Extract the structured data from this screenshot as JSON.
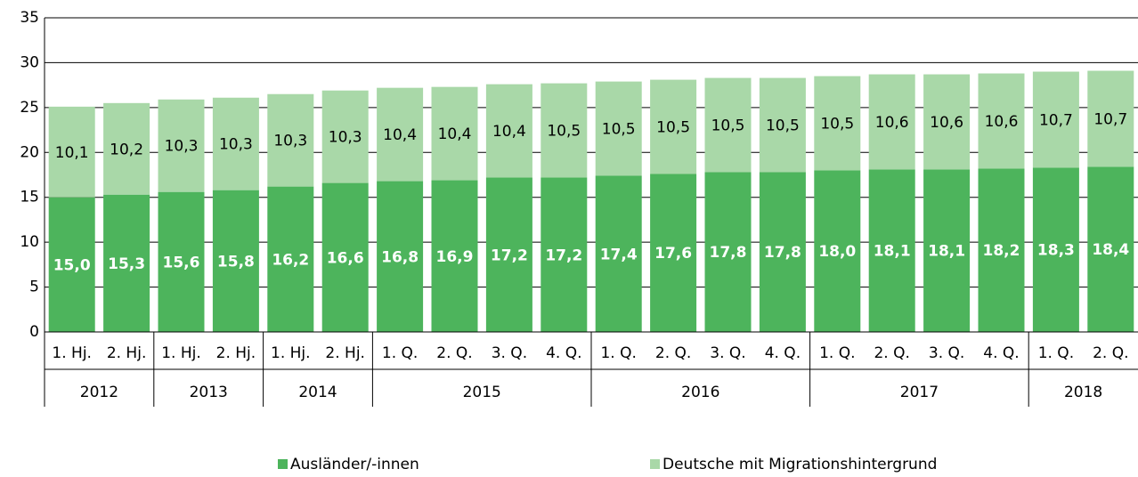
{
  "chart_data": {
    "type": "stacked_bar",
    "categories": [
      "1. Hj.",
      "2. Hj.",
      "1. Hj.",
      "2. Hj.",
      "1. Hj.",
      "2. Hj.",
      "1. Q.",
      "2. Q.",
      "3. Q.",
      "4. Q.",
      "1. Q.",
      "2. Q.",
      "3. Q.",
      "4. Q.",
      "1. Q.",
      "2. Q.",
      "3. Q.",
      "4. Q.",
      "1. Q.",
      "2. Q."
    ],
    "groups": [
      {
        "name": "2012",
        "count": 2
      },
      {
        "name": "2013",
        "count": 2
      },
      {
        "name": "2014",
        "count": 2
      },
      {
        "name": "2015",
        "count": 4
      },
      {
        "name": "2016",
        "count": 4
      },
      {
        "name": "2017",
        "count": 4
      },
      {
        "name": "2018",
        "count": 2
      }
    ],
    "series": [
      {
        "name": "Ausländer/-innen",
        "color": "#4db45c",
        "values": [
          15.0,
          15.3,
          15.6,
          15.8,
          16.2,
          16.6,
          16.8,
          16.9,
          17.2,
          17.2,
          17.4,
          17.6,
          17.8,
          17.8,
          18.0,
          18.1,
          18.1,
          18.2,
          18.3,
          18.4
        ],
        "value_labels": [
          "15,0",
          "15,3",
          "15,6",
          "15,8",
          "16,2",
          "16,6",
          "16,8",
          "16,9",
          "17,2",
          "17,2",
          "17,4",
          "17,6",
          "17,8",
          "17,8",
          "18,0",
          "18,1",
          "18,1",
          "18,2",
          "18,3",
          "18,4"
        ]
      },
      {
        "name": "Deutsche mit Migrationshintergrund",
        "color": "#a9d8a8",
        "values": [
          10.1,
          10.2,
          10.3,
          10.3,
          10.3,
          10.3,
          10.4,
          10.4,
          10.4,
          10.5,
          10.5,
          10.5,
          10.5,
          10.5,
          10.5,
          10.6,
          10.6,
          10.6,
          10.7,
          10.7
        ],
        "value_labels": [
          "10,1",
          "10,2",
          "10,3",
          "10,3",
          "10,3",
          "10,3",
          "10,4",
          "10,4",
          "10,4",
          "10,5",
          "10,5",
          "10,5",
          "10,5",
          "10,5",
          "10,5",
          "10,6",
          "10,6",
          "10,6",
          "10,7",
          "10,7"
        ]
      }
    ],
    "ylim": [
      0,
      35
    ],
    "yticks": [
      0,
      5,
      10,
      15,
      20,
      25,
      30,
      35
    ],
    "grid": true
  }
}
